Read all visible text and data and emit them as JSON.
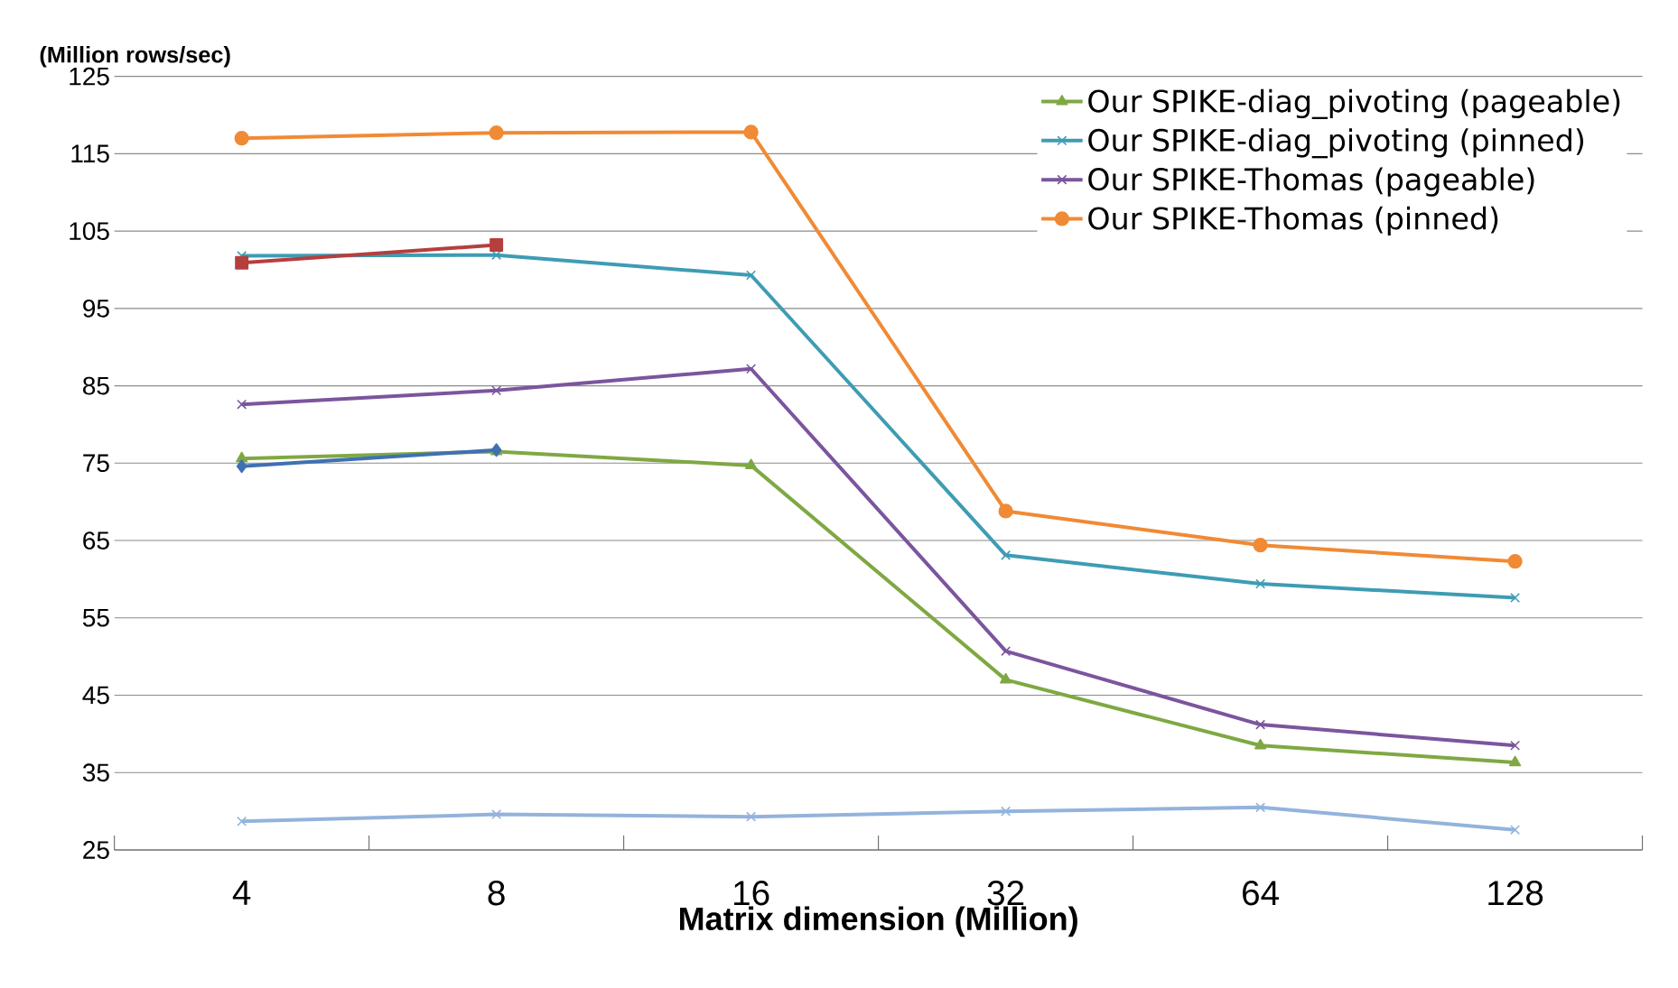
{
  "chart_data": {
    "type": "line",
    "xlabel": "Matrix dimension (Million)",
    "ylabel": "(Million rows/sec)",
    "categories": [
      "4",
      "8",
      "16",
      "32",
      "64",
      "128"
    ],
    "ylim": [
      25,
      125
    ],
    "yticks": [
      25,
      35,
      45,
      55,
      65,
      75,
      85,
      95,
      105,
      115,
      125
    ],
    "grid": "y",
    "legend": "top right",
    "series": [
      {
        "name": "Our SPIKE-diag_pivoting (pageable)",
        "color": "#7fa843",
        "marker": "triangle",
        "values": [
          75.6,
          76.5,
          74.7,
          47.0,
          38.5,
          36.3
        ]
      },
      {
        "name": "Our SPIKE-diag_pivoting (pinned)",
        "color": "#3e9cb4",
        "marker": "cross",
        "values": [
          101.8,
          101.9,
          99.3,
          63.1,
          59.4,
          57.6
        ]
      },
      {
        "name": "Our SPIKE-Thomas (pageable)",
        "color": "#7b559e",
        "marker": "cross",
        "values": [
          82.6,
          84.4,
          87.2,
          50.7,
          41.2,
          38.5
        ]
      },
      {
        "name": "Our SPIKE-Thomas (pinned)",
        "color": "#f08a35",
        "marker": "circle",
        "values": [
          117.0,
          117.7,
          117.8,
          68.8,
          64.4,
          62.3
        ]
      },
      {
        "color": "#3f70b2",
        "marker": "diamond",
        "values": [
          74.6,
          76.7,
          null,
          null,
          null,
          null
        ]
      },
      {
        "color": "#b53f3d",
        "marker": "square",
        "values": [
          100.9,
          103.2,
          null,
          null,
          null,
          null
        ]
      },
      {
        "color": "#93b3dc",
        "marker": "cross",
        "values": [
          28.7,
          29.6,
          29.3,
          30.0,
          30.5,
          27.6
        ]
      }
    ]
  }
}
